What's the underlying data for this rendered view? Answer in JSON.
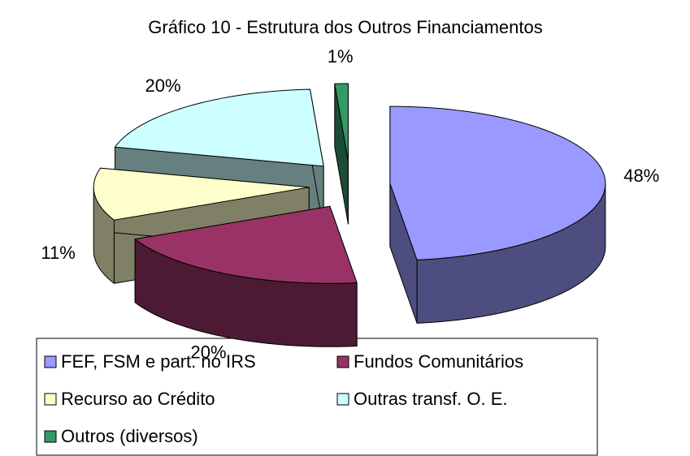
{
  "chart_data": {
    "type": "pie3d",
    "title": "Gráfico 10 - Estrutura dos Outros Financiamentos",
    "categories": [
      "FEF, FSM e part. no IRS",
      "Fundos Comunitários",
      "Recurso ao Crédito",
      "Outras transf. O. E.",
      "Outros (diversos)"
    ],
    "values": [
      48,
      20,
      11,
      20,
      1
    ],
    "value_labels": [
      "48%",
      "20%",
      "11%",
      "20%",
      "1%"
    ],
    "colors": [
      "#9999ff",
      "#993366",
      "#ffffcc",
      "#ccffff",
      "#339966"
    ]
  }
}
